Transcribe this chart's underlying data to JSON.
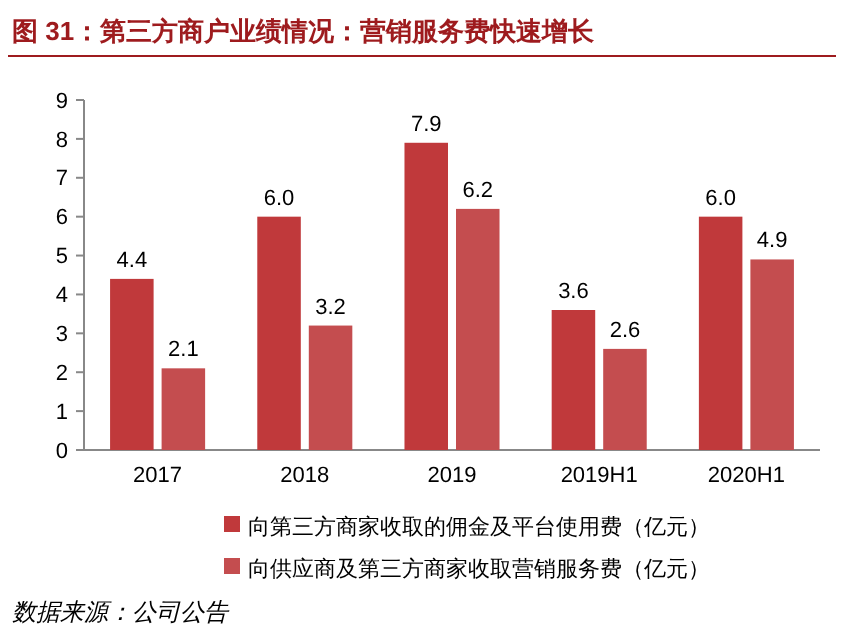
{
  "chart_data": {
    "type": "bar",
    "title": "图 31：第三方商户业绩情况：营销服务费快速增长",
    "categories": [
      "2017",
      "2018",
      "2019",
      "2019H1",
      "2020H1"
    ],
    "series": [
      {
        "name": "向第三方商家收取的佣金及平台使用费（亿元）",
        "color": "#c0393b",
        "values": [
          4.4,
          6.0,
          7.9,
          3.6,
          6.0
        ],
        "value_labels": [
          "4.4",
          "6.0",
          "7.9",
          "3.6",
          "6.0"
        ]
      },
      {
        "name": "向供应商及第三方商家收取营销服务费（亿元）",
        "color": "#c44d4f",
        "values": [
          2.1,
          3.2,
          6.2,
          2.6,
          4.9
        ],
        "value_labels": [
          "2.1",
          "3.2",
          "6.2",
          "2.6",
          "4.9"
        ]
      }
    ],
    "ylim": [
      0,
      9
    ],
    "yticks": [
      0,
      1,
      2,
      3,
      4,
      5,
      6,
      7,
      8,
      9
    ],
    "grid": false,
    "legend": "bottom",
    "annotations": [
      "数据来源：公司公告"
    ]
  }
}
